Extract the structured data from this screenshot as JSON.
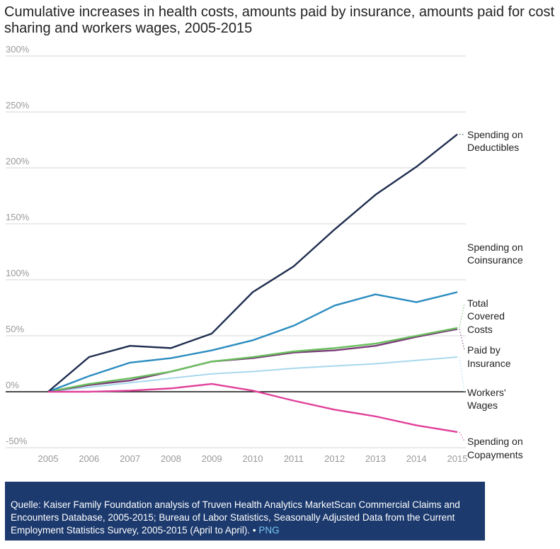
{
  "chart_data": {
    "type": "line",
    "title": "Cumulative increases in health costs, amounts paid by insurance, amounts paid for cost sharing and workers wages, 2005-2015",
    "x": [
      2005,
      2006,
      2007,
      2008,
      2009,
      2010,
      2011,
      2012,
      2013,
      2014,
      2015
    ],
    "x_tick_labels": [
      "2005",
      "2006",
      "2007",
      "2008",
      "2009",
      "2010",
      "2011",
      "2012",
      "2013",
      "2014",
      "2015"
    ],
    "y_tick_labels": [
      "300%",
      "250%",
      "200%",
      "150%",
      "100%",
      "50%",
      "0%",
      "-50%"
    ],
    "y_ticks": [
      300,
      250,
      200,
      150,
      100,
      50,
      0,
      -50
    ],
    "ylim": [
      -50,
      300
    ],
    "grid": true,
    "legend": "direct labels at right end of lines",
    "series": [
      {
        "name": "Spending on Deductibles",
        "label_lines": [
          "Spending on",
          "Deductibles"
        ],
        "color": "#1f2d4f",
        "values": [
          0,
          31,
          41,
          39,
          52,
          89,
          112,
          145,
          176,
          201,
          230
        ]
      },
      {
        "name": "Spending on Coinsurance",
        "label_lines": [
          "Spending on",
          "Coinsurance"
        ],
        "color": "#2b8cc0",
        "values": [
          0,
          14,
          26,
          30,
          37,
          46,
          59,
          77,
          87,
          80,
          89
        ]
      },
      {
        "name": "Total Covered Costs",
        "label_lines": [
          "Total",
          "Covered",
          "Costs"
        ],
        "color": "#6abf5e",
        "values": [
          0,
          7,
          12,
          18,
          27,
          31,
          36,
          39,
          43,
          50,
          57
        ]
      },
      {
        "name": "Paid by Insurance",
        "label_lines": [
          "Paid by",
          "Insurance"
        ],
        "color": "#7a3b78",
        "values": [
          0,
          6,
          10,
          18,
          27,
          30,
          35,
          37,
          41,
          49,
          56
        ]
      },
      {
        "name": "Workers' Wages",
        "label_lines": [
          "Workers'",
          "Wages"
        ],
        "color": "#a8d8ec",
        "values": [
          0,
          4,
          8,
          12,
          16,
          18,
          21,
          23,
          25,
          28,
          31
        ]
      },
      {
        "name": "Spending on Copayments",
        "label_lines": [
          "Spending on",
          "Copayments"
        ],
        "color": "#e0409a",
        "values": [
          0,
          0,
          1,
          3,
          7,
          1,
          -8,
          -16,
          -22,
          -30,
          -36
        ]
      }
    ]
  },
  "footer": {
    "source": "Quelle: Kaiser Family Foundation analysis of Truven Health Analytics MarketScan Commercial Claims and Encounters Database, 2005-2015; Bureau of Labor Statistics, Seasonally Adjusted Data from the Current Employment Statistics Survey, 2005-2015 (April to April).",
    "separator": "•",
    "png_link": "PNG"
  }
}
